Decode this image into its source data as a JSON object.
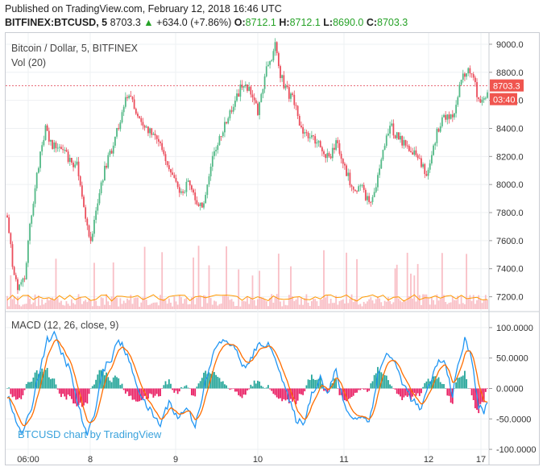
{
  "header": {
    "published": "Published on TradingView.com, February 12, 2018 16:46 UTC",
    "symbol": "BITFINEX:BTCUSD, 5",
    "last": "8703.3",
    "change": "+634.0 (+7.86%)",
    "o_label": "O:",
    "o_value": "8712.1",
    "h_label": "H:",
    "h_value": "8712.1",
    "l_label": "L:",
    "l_value": "8690.0",
    "c_label": "C:",
    "c_value": "8703.3"
  },
  "legend": {
    "main": "Bitcoin / Dollar, 5, BITFINEX",
    "volume": "Vol (20)",
    "macd": "MACD (12, 26, close, 9)"
  },
  "price_tag": {
    "value": "8703.3",
    "countdown": "03:40"
  },
  "credit": "BTCUSD chart by TradingView",
  "colors": {
    "up": "#53b987",
    "down": "#eb4d5c",
    "macd": "#2196f3",
    "signal": "#ff6d00",
    "hist_pos": "#26a69a",
    "hist_neg": "#e91e63",
    "volume": "#f7a9b3"
  },
  "chart_data": {
    "type": "candlestick",
    "price_axis": {
      "ticks": [
        "9000.0",
        "8800.0",
        "8600.0",
        "8400.0",
        "8200.0",
        "8000.0",
        "7800.0",
        "7600.0",
        "7400.0",
        "7200.0"
      ],
      "range": [
        7100,
        9080
      ]
    },
    "macd_axis": {
      "ticks": [
        "100.0000",
        "50.0000",
        "0.0000",
        "-50.0000",
        "-100.0000"
      ],
      "range": [
        -125,
        125
      ]
    },
    "time_axis": [
      "06:00",
      "8",
      "9",
      "10",
      "11",
      "12",
      "17"
    ],
    "price_path": [
      [
        0,
        7780
      ],
      [
        3,
        7430
      ],
      [
        6,
        7280
      ],
      [
        10,
        7350
      ],
      [
        14,
        7800
      ],
      [
        18,
        8150
      ],
      [
        22,
        8400
      ],
      [
        26,
        8260
      ],
      [
        30,
        8300
      ],
      [
        35,
        8180
      ],
      [
        40,
        8140
      ],
      [
        45,
        7750
      ],
      [
        48,
        7600
      ],
      [
        52,
        7900
      ],
      [
        56,
        8100
      ],
      [
        60,
        8250
      ],
      [
        64,
        8420
      ],
      [
        67,
        8580
      ],
      [
        70,
        8640
      ],
      [
        73,
        8560
      ],
      [
        77,
        8420
      ],
      [
        81,
        8380
      ],
      [
        85,
        8360
      ],
      [
        89,
        8260
      ],
      [
        93,
        8120
      ],
      [
        97,
        8000
      ],
      [
        101,
        7920
      ],
      [
        104,
        8050
      ],
      [
        108,
        7900
      ],
      [
        112,
        7820
      ],
      [
        115,
        8000
      ],
      [
        118,
        8200
      ],
      [
        122,
        8310
      ],
      [
        126,
        8450
      ],
      [
        130,
        8550
      ],
      [
        134,
        8680
      ],
      [
        138,
        8700
      ],
      [
        141,
        8600
      ],
      [
        144,
        8520
      ],
      [
        147,
        8700
      ],
      [
        150,
        8880
      ],
      [
        152,
        8920
      ],
      [
        154,
        8990
      ],
      [
        156,
        8820
      ],
      [
        159,
        8720
      ],
      [
        162,
        8640
      ],
      [
        165,
        8600
      ],
      [
        168,
        8420
      ],
      [
        172,
        8350
      ],
      [
        176,
        8320
      ],
      [
        180,
        8280
      ],
      [
        183,
        8180
      ],
      [
        186,
        8220
      ],
      [
        189,
        8310
      ],
      [
        192,
        8200
      ],
      [
        196,
        8050
      ],
      [
        200,
        7960
      ],
      [
        204,
        7980
      ],
      [
        208,
        7860
      ],
      [
        211,
        7950
      ],
      [
        214,
        8100
      ],
      [
        217,
        8300
      ],
      [
        220,
        8420
      ],
      [
        224,
        8340
      ],
      [
        228,
        8300
      ],
      [
        232,
        8260
      ],
      [
        235,
        8220
      ],
      [
        238,
        8150
      ],
      [
        241,
        8050
      ],
      [
        244,
        8200
      ],
      [
        247,
        8380
      ],
      [
        250,
        8460
      ],
      [
        253,
        8500
      ],
      [
        256,
        8450
      ],
      [
        259,
        8650
      ],
      [
        262,
        8790
      ],
      [
        265,
        8800
      ],
      [
        268,
        8750
      ],
      [
        270,
        8640
      ],
      [
        273,
        8570
      ],
      [
        276,
        8680
      ]
    ],
    "macd_path": [
      [
        0,
        -10
      ],
      [
        5,
        -55
      ],
      [
        9,
        -75
      ],
      [
        14,
        -30
      ],
      [
        19,
        35
      ],
      [
        23,
        80
      ],
      [
        27,
        88
      ],
      [
        31,
        60
      ],
      [
        36,
        30
      ],
      [
        41,
        -30
      ],
      [
        46,
        -80
      ],
      [
        50,
        -40
      ],
      [
        55,
        30
      ],
      [
        60,
        50
      ],
      [
        64,
        80
      ],
      [
        68,
        60
      ],
      [
        73,
        20
      ],
      [
        78,
        -20
      ],
      [
        83,
        -40
      ],
      [
        88,
        -60
      ],
      [
        93,
        -20
      ],
      [
        98,
        -50
      ],
      [
        103,
        -30
      ],
      [
        108,
        -60
      ],
      [
        114,
        10
      ],
      [
        120,
        70
      ],
      [
        126,
        80
      ],
      [
        132,
        60
      ],
      [
        137,
        30
      ],
      [
        141,
        55
      ],
      [
        146,
        75
      ],
      [
        150,
        70
      ],
      [
        154,
        55
      ],
      [
        158,
        15
      ],
      [
        162,
        -20
      ],
      [
        166,
        -50
      ],
      [
        170,
        -60
      ],
      [
        175,
        -10
      ],
      [
        180,
        20
      ],
      [
        184,
        -10
      ],
      [
        189,
        30
      ],
      [
        193,
        -20
      ],
      [
        198,
        -50
      ],
      [
        203,
        -45
      ],
      [
        208,
        -55
      ],
      [
        213,
        20
      ],
      [
        218,
        60
      ],
      [
        223,
        40
      ],
      [
        228,
        5
      ],
      [
        233,
        -20
      ],
      [
        238,
        -35
      ],
      [
        243,
        10
      ],
      [
        248,
        45
      ],
      [
        252,
        40
      ],
      [
        256,
        -10
      ],
      [
        259,
        35
      ],
      [
        263,
        80
      ],
      [
        267,
        50
      ],
      [
        271,
        -30
      ],
      [
        274,
        -40
      ],
      [
        276,
        -20
      ]
    ],
    "volume_ylim": [
      0,
      1
    ]
  }
}
